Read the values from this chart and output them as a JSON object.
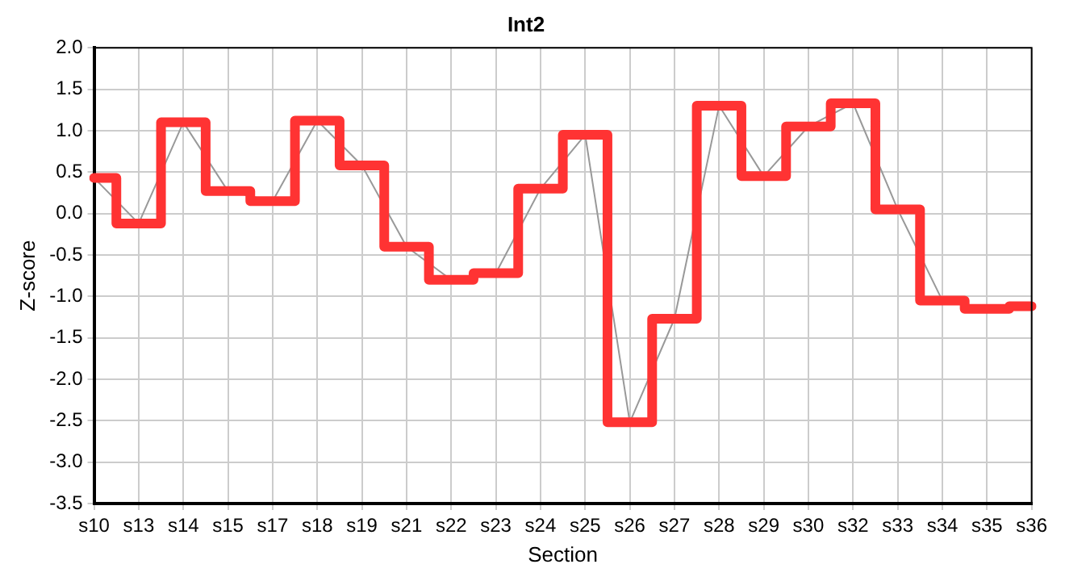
{
  "chart_data": {
    "type": "step",
    "title": "Int2",
    "xlabel": "Section",
    "ylabel": "Z-score",
    "categories": [
      "s10",
      "s13",
      "s14",
      "s15",
      "s17",
      "s18",
      "s19",
      "s21",
      "s22",
      "s23",
      "s24",
      "s25",
      "s26",
      "s27",
      "s28",
      "s29",
      "s30",
      "s32",
      "s33",
      "s34",
      "s35",
      "s36"
    ],
    "series": [
      {
        "type": "line",
        "color": "#999999",
        "values": [
          0.43,
          -0.12,
          1.1,
          0.27,
          0.15,
          1.12,
          0.58,
          -0.4,
          -0.8,
          -0.72,
          0.3,
          0.95,
          -2.52,
          -1.27,
          1.3,
          0.45,
          1.05,
          1.33,
          0.05,
          -1.05,
          -1.15,
          -1.12
        ]
      },
      {
        "color": "#ff3333",
        "values": [
          0.43,
          -0.12,
          1.1,
          0.27,
          0.15,
          1.12,
          0.58,
          -0.4,
          -0.8,
          -0.72,
          0.3,
          0.95,
          -2.52,
          -1.27,
          1.3,
          0.45,
          1.05,
          1.33,
          0.05,
          -1.05,
          -1.15,
          -1.12
        ]
      }
    ],
    "ylim": [
      -3.5,
      2.0
    ],
    "yticks": [
      -3.5,
      {
        "value": -3,
        "label": "-3.0"
      },
      -2.5,
      {
        "value": -2,
        "label": "-2.0"
      },
      -1.5,
      {
        "value": -1,
        "label": "-1.0"
      },
      -0.5,
      {
        "value": 0,
        "label": "0.0"
      },
      0.5,
      {
        "value": 1,
        "label": "1.0"
      },
      1.5,
      {
        "value": 2,
        "label": "2.0"
      }
    ],
    "grid": true,
    "legend": false,
    "marker": "none",
    "line_style": "solid"
  }
}
